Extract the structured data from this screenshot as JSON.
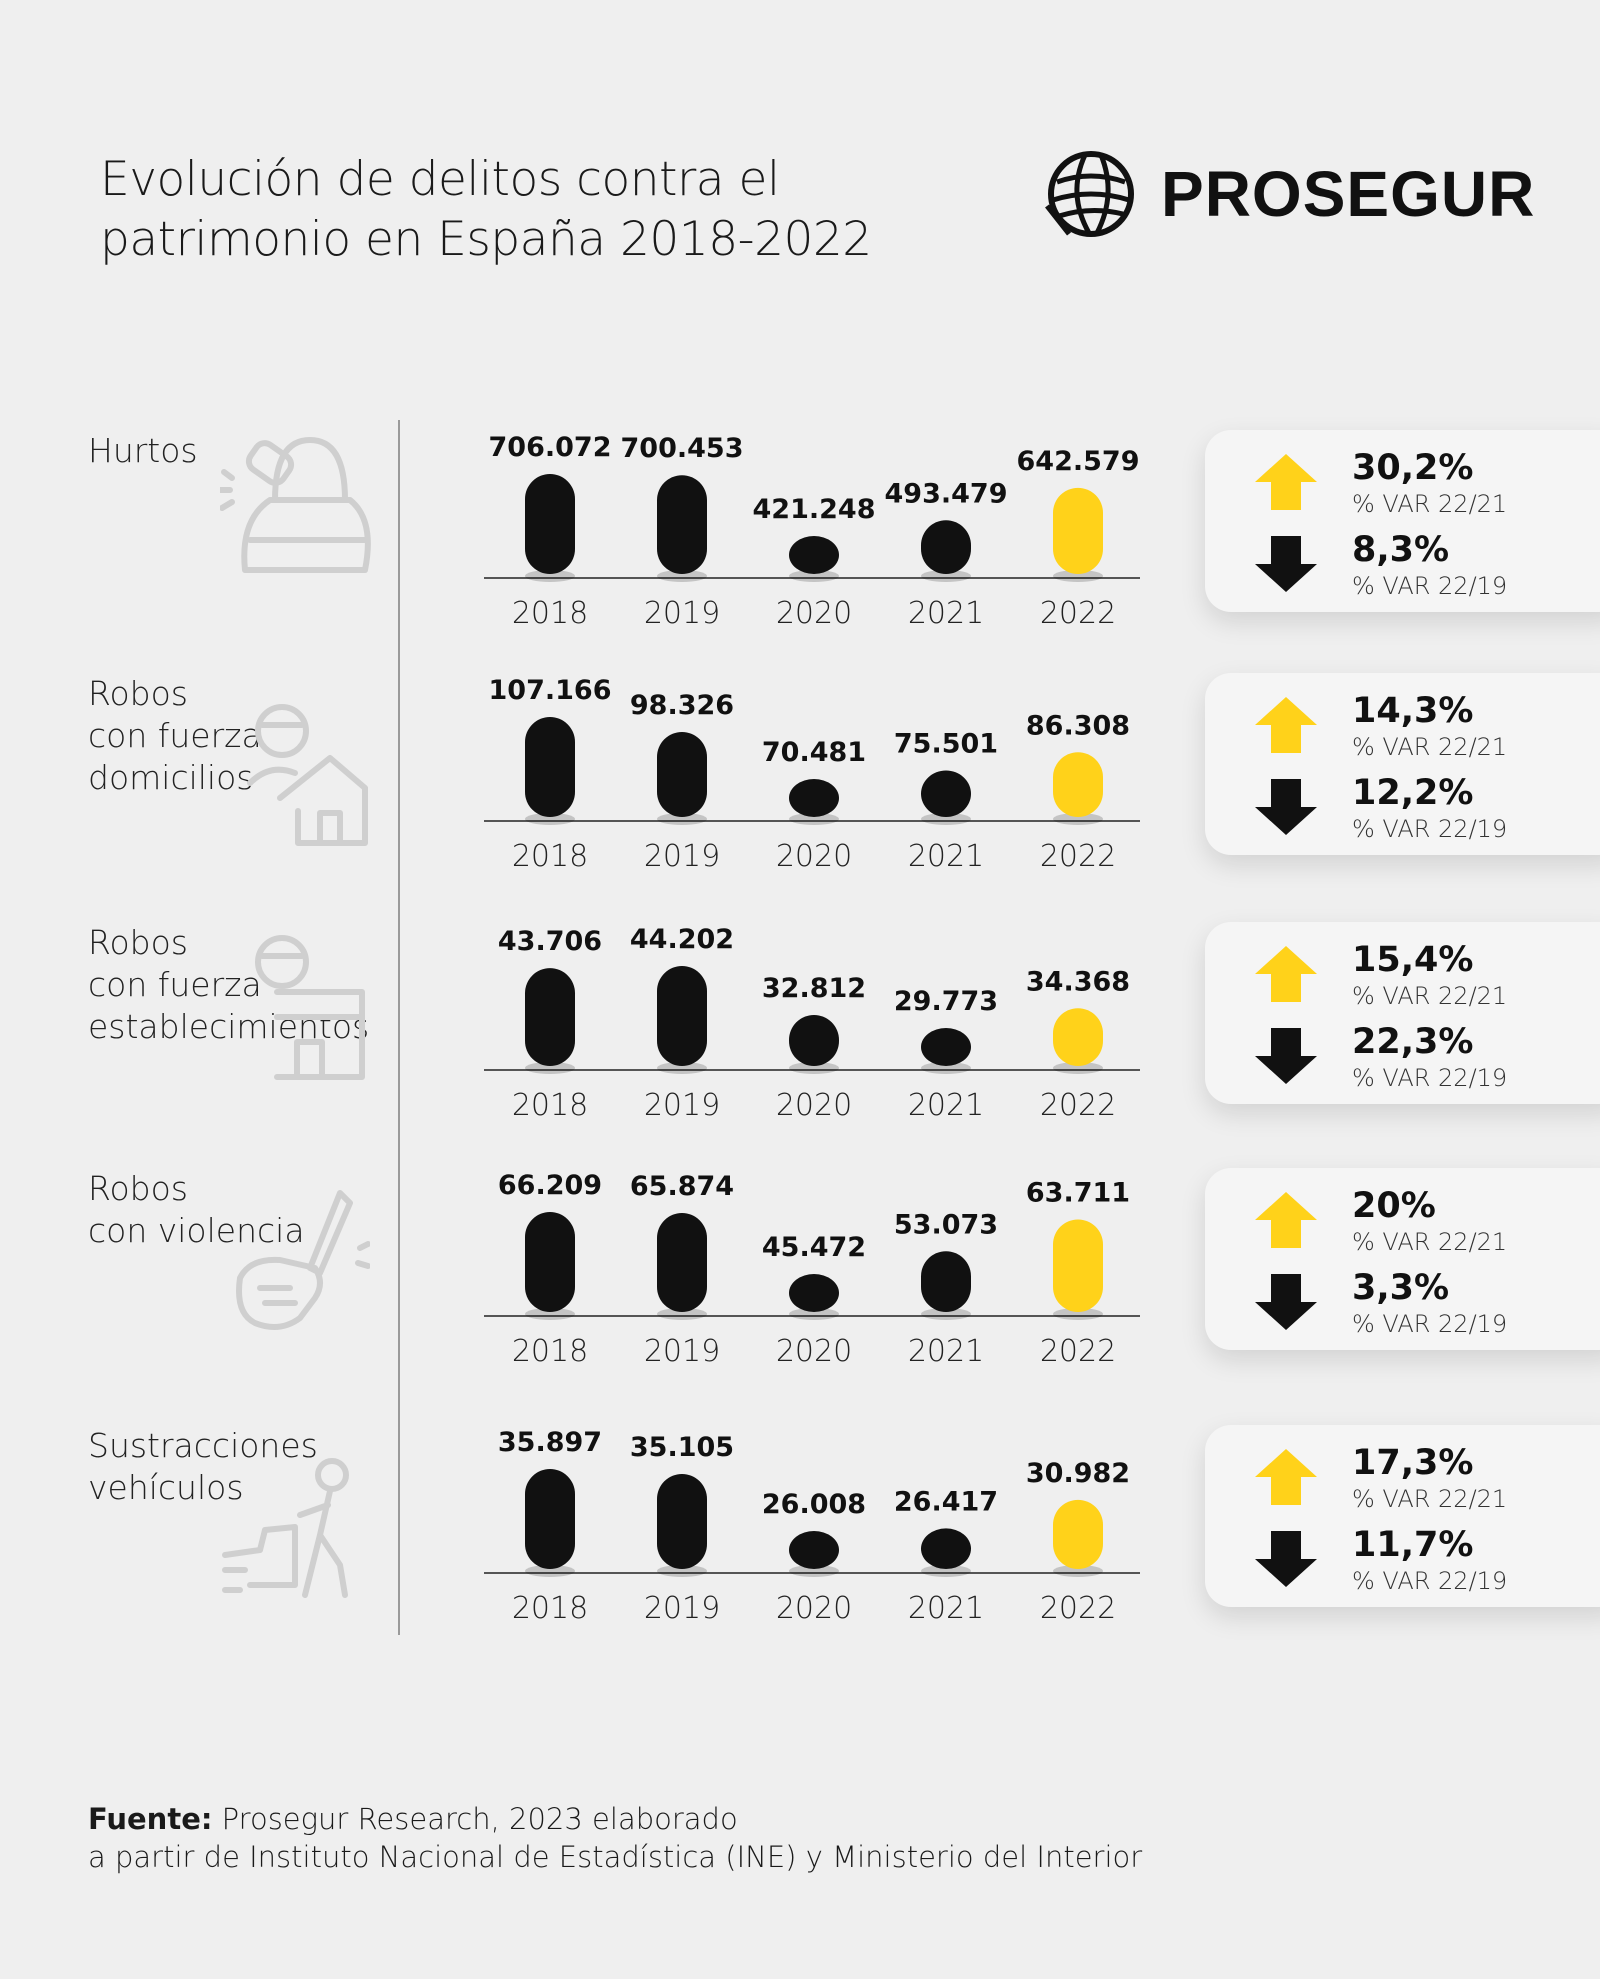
{
  "header": {
    "title_line1": "Evolución de delitos contra el",
    "title_line2": "patrimonio en España 2018-2022",
    "brand": "PROSEGUR"
  },
  "colors": {
    "background": "#efefef",
    "bar": "#111111",
    "highlight": "#ffd21a",
    "up_arrow": "#ffd21a",
    "down_arrow": "#111111"
  },
  "chart_data": [
    {
      "type": "bar",
      "title": "Hurtos",
      "categories": [
        "2018",
        "2019",
        "2020",
        "2021",
        "2022"
      ],
      "values": [
        706072,
        700453,
        421248,
        493479,
        642579
      ],
      "value_labels": [
        "706.072",
        "700.453",
        "421.248",
        "493.479",
        "642.579"
      ],
      "highlight_index": 4,
      "icon": "bag-snatch-icon"
    },
    {
      "type": "bar",
      "title": "Robos con fuerza domicilios",
      "categories": [
        "2018",
        "2019",
        "2020",
        "2021",
        "2022"
      ],
      "values": [
        107166,
        98326,
        70481,
        75501,
        86308
      ],
      "value_labels": [
        "107.166",
        "98.326",
        "70.481",
        "75.501",
        "86.308"
      ],
      "highlight_index": 4,
      "icon": "burglar-house-icon"
    },
    {
      "type": "bar",
      "title": "Robos con fuerza establecimientos",
      "categories": [
        "2018",
        "2019",
        "2020",
        "2021",
        "2022"
      ],
      "values": [
        43706,
        44202,
        32812,
        29773,
        34368
      ],
      "value_labels": [
        "43.706",
        "44.202",
        "32.812",
        "29.773",
        "34.368"
      ],
      "highlight_index": 4,
      "icon": "burglar-shop-icon"
    },
    {
      "type": "bar",
      "title": "Robos con violencia",
      "categories": [
        "2018",
        "2019",
        "2020",
        "2021",
        "2022"
      ],
      "values": [
        66209,
        65874,
        45472,
        53073,
        63711
      ],
      "value_labels": [
        "66.209",
        "65.874",
        "45.472",
        "53.073",
        "63.711"
      ],
      "highlight_index": 4,
      "icon": "fist-knife-icon"
    },
    {
      "type": "bar",
      "title": "Sustracciones vehículos",
      "categories": [
        "2018",
        "2019",
        "2020",
        "2021",
        "2022"
      ],
      "values": [
        35897,
        35105,
        26008,
        26417,
        30982
      ],
      "value_labels": [
        "35.897",
        "35.105",
        "26.008",
        "26.417",
        "30.982"
      ],
      "highlight_index": 4,
      "icon": "car-thief-icon"
    }
  ],
  "sections": [
    {
      "label_lines": [
        "Hurtos"
      ],
      "var_up": "30,2%",
      "var_up_label": "% VAR 22/21",
      "var_down": "8,3%",
      "var_down_label": "% VAR 22/19"
    },
    {
      "label_lines": [
        "Robos",
        "con fuerza",
        "domicilios"
      ],
      "var_up": "14,3%",
      "var_up_label": "% VAR 22/21",
      "var_down": "12,2%",
      "var_down_label": "% VAR 22/19"
    },
    {
      "label_lines": [
        "Robos",
        "con fuerza",
        "establecimientos"
      ],
      "var_up": "15,4%",
      "var_up_label": "% VAR 22/21",
      "var_down": "22,3%",
      "var_down_label": "% VAR 22/19"
    },
    {
      "label_lines": [
        "Robos",
        "con violencia"
      ],
      "var_up": "20%",
      "var_up_label": "% VAR 22/21",
      "var_down": "3,3%",
      "var_down_label": "% VAR 22/19"
    },
    {
      "label_lines": [
        "Sustracciones",
        "vehículos"
      ],
      "var_up": "17,3%",
      "var_up_label": "% VAR 22/21",
      "var_down": "11,7%",
      "var_down_label": "% VAR 22/19"
    }
  ],
  "footer": {
    "source_label": "Fuente:",
    "source_text_1": " Prosegur Research, 2023 elaborado",
    "source_text_2": "a partir de Instituto Nacional de Estadística (INE) y Ministerio del Interior"
  }
}
